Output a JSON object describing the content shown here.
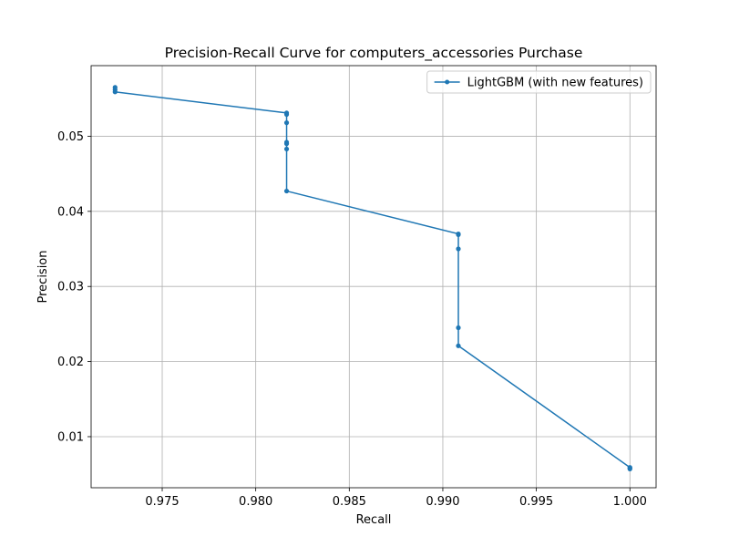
{
  "chart_data": {
    "type": "line",
    "title": "Precision-Recall Curve for computers_accessories Purchase",
    "xlabel": "Recall",
    "ylabel": "Precision",
    "xlim": [
      0.9712,
      1.0014
    ],
    "ylim": [
      0.0032,
      0.0594
    ],
    "xticks": [
      0.975,
      0.98,
      0.985,
      0.99,
      0.995,
      1.0
    ],
    "xtick_labels": [
      "0.975",
      "0.980",
      "0.985",
      "0.990",
      "0.995",
      "1.000"
    ],
    "yticks": [
      0.01,
      0.02,
      0.03,
      0.04,
      0.05
    ],
    "ytick_labels": [
      "0.01",
      "0.02",
      "0.03",
      "0.04",
      "0.05"
    ],
    "grid": true,
    "legend_position": "top-right",
    "series": [
      {
        "name": "LightGBM (with new features)",
        "color": "#1f77b4",
        "marker": "circle",
        "x": [
          0.97248,
          0.97248,
          0.97248,
          0.98165,
          0.98165,
          0.98165,
          0.98165,
          0.98165,
          0.98165,
          0.98165,
          0.99083,
          0.99083,
          0.99083,
          0.99083,
          0.99083,
          1.0,
          1.0,
          1.0
        ],
        "y": [
          0.0565,
          0.0562,
          0.0559,
          0.0531,
          0.0529,
          0.0518,
          0.0492,
          0.049,
          0.0483,
          0.0427,
          0.037,
          0.0369,
          0.035,
          0.0245,
          0.0221,
          0.0059,
          0.0058,
          0.0057
        ]
      }
    ]
  }
}
